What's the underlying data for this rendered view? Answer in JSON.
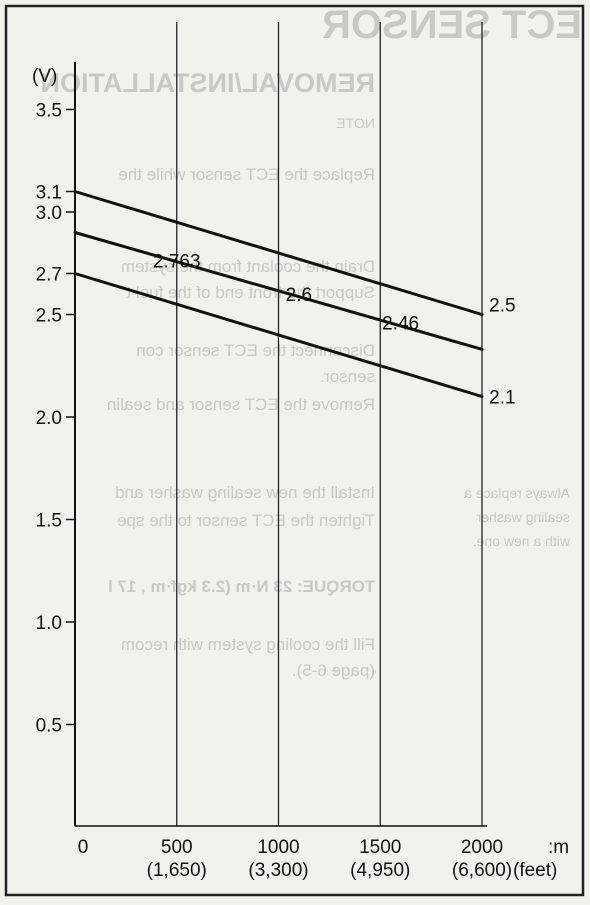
{
  "chart_data": {
    "type": "line",
    "title": "",
    "ylabel": "(V)",
    "xlabel": ":m",
    "x_secondary_unit": "(feet)",
    "xlim": [
      0,
      2000
    ],
    "ylim": [
      0,
      3.5
    ],
    "x_ticks": [
      {
        "value": 0,
        "label": "0",
        "secondary": ""
      },
      {
        "value": 500,
        "label": "500",
        "secondary": "(1,650)"
      },
      {
        "value": 1000,
        "label": "1000",
        "secondary": "(3,300)"
      },
      {
        "value": 1500,
        "label": "1500",
        "secondary": "(4,950)"
      },
      {
        "value": 2000,
        "label": "2000",
        "secondary": "(6,600)"
      }
    ],
    "y_ticks": [
      {
        "value": 0.5,
        "label": "0.5"
      },
      {
        "value": 1.0,
        "label": "1.0"
      },
      {
        "value": 1.5,
        "label": "1.5"
      },
      {
        "value": 2.0,
        "label": "2.0"
      },
      {
        "value": 2.5,
        "label": "2.5"
      },
      {
        "value": 2.7,
        "label": "2.7"
      },
      {
        "value": 3.0,
        "label": "3.0"
      },
      {
        "value": 3.1,
        "label": "3.1"
      },
      {
        "value": 3.5,
        "label": "3.5"
      }
    ],
    "series": [
      {
        "x": [
          0,
          2000
        ],
        "y": [
          3.1,
          2.5
        ]
      },
      {
        "x": [
          0,
          2000
        ],
        "y": [
          2.9,
          2.33
        ]
      },
      {
        "x": [
          0,
          2000
        ],
        "y": [
          2.7,
          2.1
        ]
      }
    ],
    "annotations": [
      {
        "text": "2.763",
        "x": 500,
        "y": 2.763
      },
      {
        "text": "2.6",
        "x": 1100,
        "y": 2.6
      },
      {
        "text": "2.46",
        "x": 1600,
        "y": 2.46
      },
      {
        "text": "2.5",
        "x": 2100,
        "y": 2.55
      },
      {
        "text": "2.1",
        "x": 2100,
        "y": 2.1
      }
    ],
    "grid": {
      "vertical": true,
      "horizontal": false
    }
  },
  "background_text": [
    "ECT SENSOR",
    "REMOVAL/INSTALLATION",
    "NOTE",
    "Replace the ECT sensor while the",
    "Drain the coolant from the system",
    "Support the front end of the fuel t",
    "Disconnect the ECT sensor con",
    "sensor.",
    "Remove the ECT sensor and sealin",
    "Always replace a",
    "sealing washer",
    "with a new one.",
    "Install the new sealing washer and",
    "Tighten the ECT sensor to the spe",
    "TORQUE: 23 N·m (2.3 kgf·m , 17 l",
    "Fill the cooling system with recom",
    "(page 6-5)."
  ]
}
